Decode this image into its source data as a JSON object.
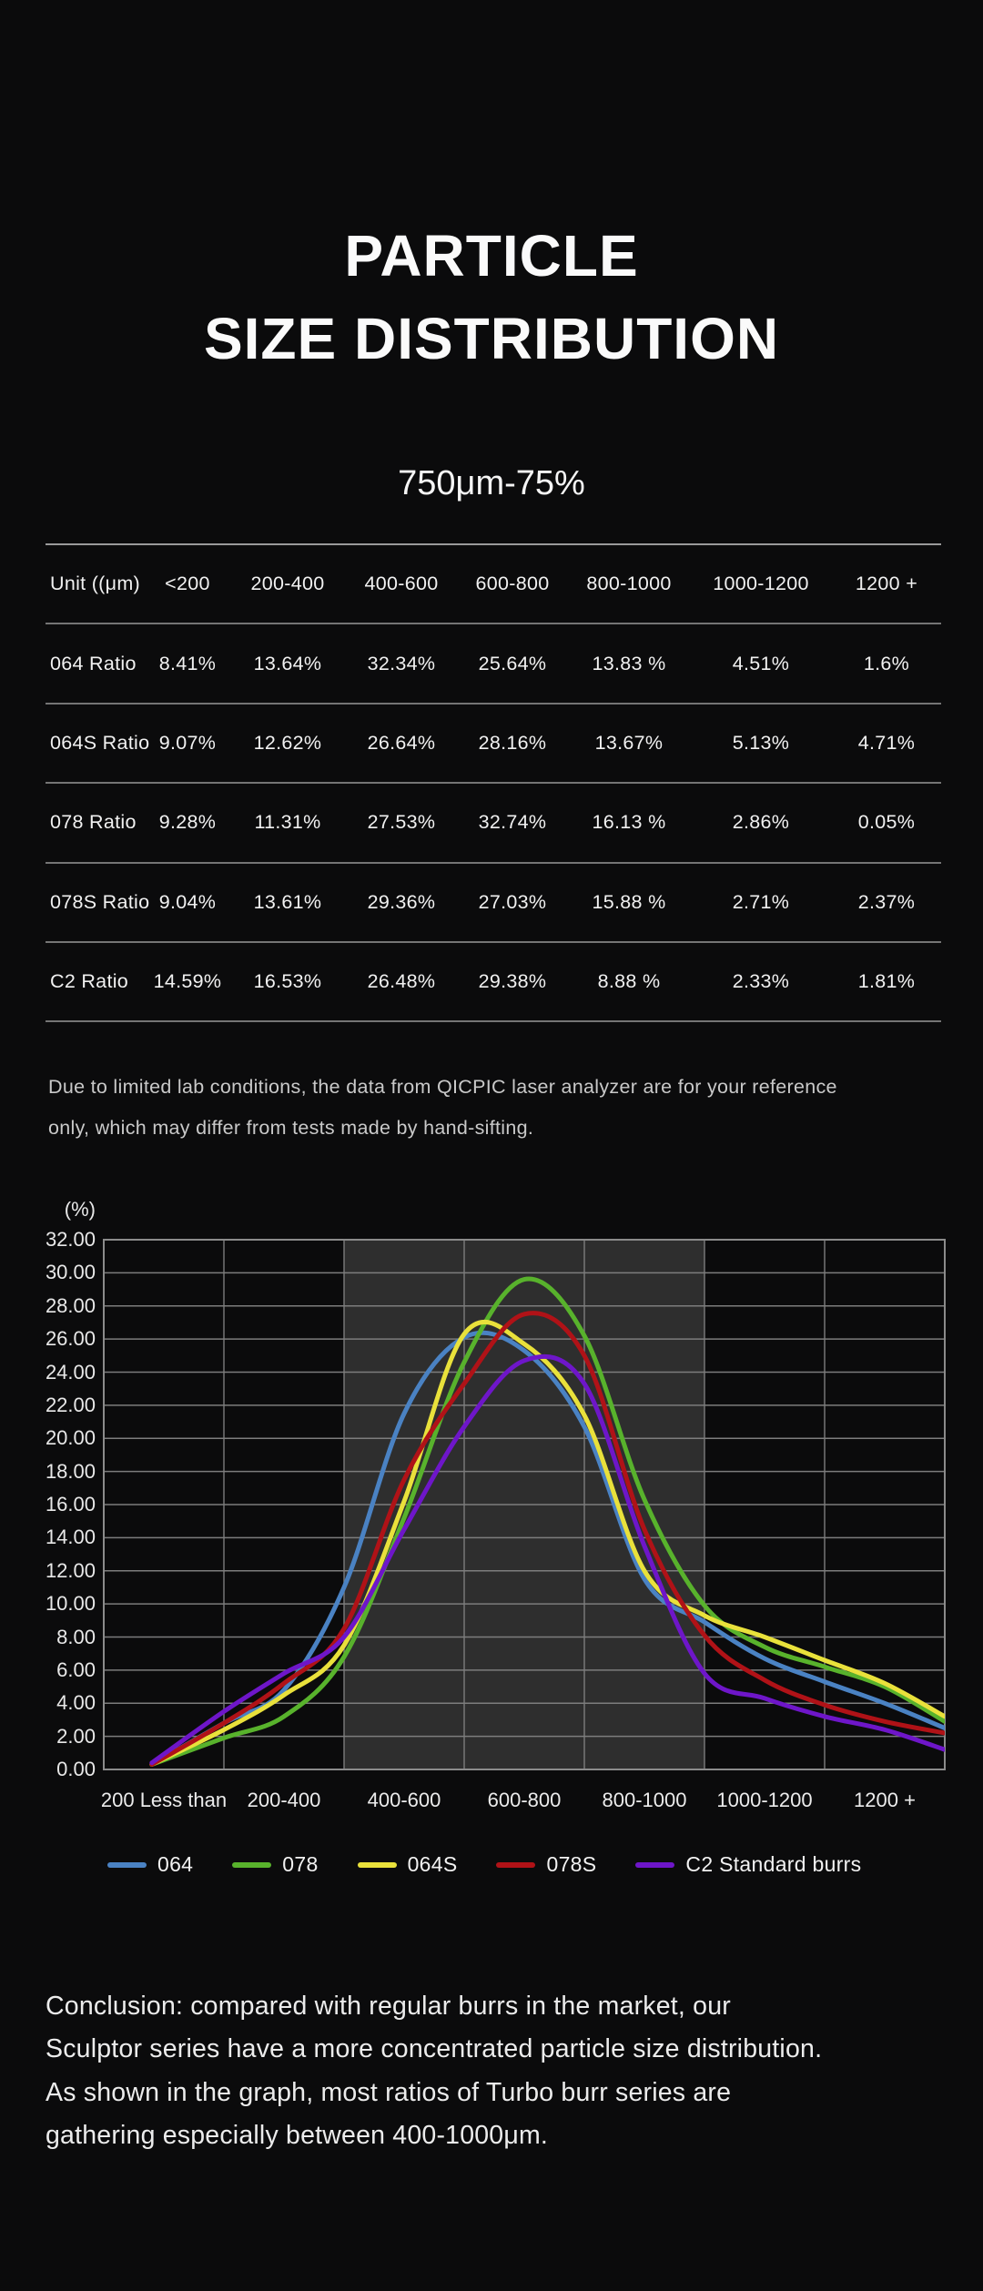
{
  "page": {
    "title_line1": "PARTICLE",
    "title_line2": "SIZE DISTRIBUTION",
    "subtitle": "750μm-75%",
    "note_lines": [
      "Due to limited lab conditions, the data from QICPIC laser analyzer are for your reference",
      "only, which may differ from tests made by hand-sifting."
    ],
    "conclusion_lines": [
      "Conclusion: compared with regular burrs in the market, our",
      "Sculptor series have a more concentrated particle size distribution.",
      "As shown in the graph, most ratios of Turbo burr series are",
      "gathering especially between 400-1000μm."
    ]
  },
  "table": {
    "columns": [
      "Unit ((μm)",
      "<200",
      "200-400",
      "400-600",
      "600-800",
      "800-1000",
      "1000-1200",
      "1200 +"
    ],
    "rows": [
      {
        "label": "064 Ratio",
        "values": [
          "8.41%",
          "13.64%",
          "32.34%",
          "25.64%",
          "13.83 %",
          "4.51%",
          "1.6%"
        ]
      },
      {
        "label": "064S Ratio",
        "values": [
          "9.07%",
          "12.62%",
          "26.64%",
          "28.16%",
          "13.67%",
          "5.13%",
          "4.71%"
        ]
      },
      {
        "label": "078 Ratio",
        "values": [
          "9.28%",
          "11.31%",
          "27.53%",
          "32.74%",
          "16.13 %",
          "2.86%",
          "0.05%"
        ]
      },
      {
        "label": "078S Ratio",
        "values": [
          "9.04%",
          "13.61%",
          "29.36%",
          "27.03%",
          "15.88 %",
          "2.71%",
          "2.37%"
        ]
      },
      {
        "label": "C2 Ratio",
        "values": [
          "14.59%",
          "16.53%",
          "26.48%",
          "29.38%",
          "8.88 %",
          "2.33%",
          "1.81%"
        ]
      }
    ]
  },
  "chart_data": {
    "type": "line",
    "y_axis_label": "(%)",
    "ylim": [
      0,
      32
    ],
    "ytick_step": 2,
    "yticks": [
      "32.00",
      "30.00",
      "28.00",
      "26.00",
      "24.00",
      "22.00",
      "20.00",
      "18.00",
      "16.00",
      "14.00",
      "12.00",
      "10.00",
      "8.00",
      "6.00",
      "4.00",
      "2.00",
      "0.00"
    ],
    "categories": [
      "200 Less than",
      "200-400",
      "400-600",
      "600-800",
      "800-1000",
      "1000-1200",
      "1200 +"
    ],
    "grid": true,
    "grid_color": "#7d7d7d",
    "highlight_band": {
      "from": "400-600",
      "to": "800-1000",
      "start_boundary": 2,
      "end_boundary": 5,
      "color": "#2e2e2e"
    },
    "legend_position": "bottom",
    "x_units": "category index (0 = center of first category)",
    "x": [
      -0.1,
      0.5,
      1,
      1.5,
      2,
      2.5,
      3,
      3.5,
      4,
      4.5,
      5,
      5.5,
      6,
      6.5
    ],
    "series": [
      {
        "name": "064",
        "color": "#4a82c3",
        "values": [
          0.3,
          2.8,
          4.8,
          11.0,
          21.5,
          26.1,
          25.3,
          20.7,
          11.5,
          8.9,
          6.7,
          5.3,
          4.0,
          2.5
        ]
      },
      {
        "name": "078",
        "color": "#58b22c",
        "values": [
          0.3,
          1.9,
          3.2,
          6.8,
          15.2,
          24.6,
          29.6,
          26.2,
          16.3,
          9.9,
          7.4,
          6.2,
          5.0,
          2.9
        ]
      },
      {
        "name": "064S",
        "color": "#e9e13b",
        "values": [
          0.3,
          2.4,
          4.5,
          7.5,
          16.2,
          26.3,
          25.7,
          21.4,
          12.0,
          9.3,
          8.0,
          6.6,
          5.2,
          3.2
        ]
      },
      {
        "name": "078S",
        "color": "#b01217",
        "values": [
          0.3,
          2.8,
          5.2,
          8.5,
          17.5,
          23.3,
          27.5,
          25.0,
          14.5,
          8.1,
          5.4,
          3.9,
          2.9,
          2.2
        ]
      },
      {
        "name": "C2 Standard burrs",
        "color": "#6e16c9",
        "values": [
          0.4,
          3.5,
          5.8,
          8.0,
          14.5,
          20.7,
          24.7,
          23.3,
          13.5,
          5.8,
          4.3,
          3.2,
          2.4,
          1.2
        ]
      }
    ]
  },
  "colors": {
    "background": "#0b0b0c",
    "band": "#2e2e2e",
    "grid": "#7d7d7d",
    "rule_top": "#9a9a9a",
    "rule": "#757575",
    "text": "#f1f1f1",
    "muted_text": "#c9c9c9"
  }
}
